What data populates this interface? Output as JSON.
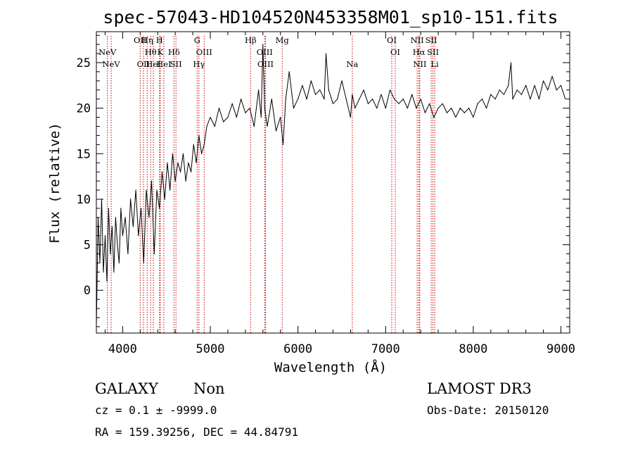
{
  "chart_data": {
    "type": "line",
    "title": "spec-57043-HD104520N453358M01_sp10-151.fits",
    "xlabel": "Wavelength (Å)",
    "ylabel": "Flux (relative)",
    "xlim": [
      3700,
      9100
    ],
    "ylim": [
      -4.7,
      28.4
    ],
    "x_ticks": [
      4000,
      5000,
      6000,
      7000,
      8000,
      9000
    ],
    "y_ticks": [
      0,
      5,
      10,
      15,
      20,
      25
    ],
    "line_color": "#000000",
    "marker_color": "#cc0000",
    "series": [
      {
        "x": [
          3700,
          3720,
          3740,
          3760,
          3780,
          3800,
          3820,
          3840,
          3860,
          3880,
          3900,
          3920,
          3940,
          3960,
          3980,
          4000,
          4030,
          4060,
          4090,
          4120,
          4150,
          4180,
          4210,
          4240,
          4270,
          4300,
          4330,
          4360,
          4390,
          4420,
          4450,
          4480,
          4510,
          4540,
          4570,
          4600,
          4630,
          4660,
          4690,
          4720,
          4750,
          4780,
          4810,
          4840,
          4870,
          4900,
          4930,
          4960,
          5000,
          5050,
          5100,
          5150,
          5200,
          5250,
          5300,
          5350,
          5400,
          5450,
          5500,
          5550,
          5580,
          5600,
          5620,
          5650,
          5700,
          5750,
          5800,
          5830,
          5860,
          5900,
          5950,
          6000,
          6050,
          6100,
          6150,
          6200,
          6250,
          6300,
          6320,
          6350,
          6400,
          6450,
          6500,
          6550,
          6600,
          6620,
          6650,
          6700,
          6750,
          6800,
          6850,
          6900,
          6950,
          7000,
          7050,
          7100,
          7150,
          7200,
          7250,
          7300,
          7350,
          7400,
          7450,
          7500,
          7550,
          7600,
          7650,
          7700,
          7750,
          7800,
          7850,
          7900,
          7950,
          8000,
          8050,
          8100,
          8150,
          8200,
          8250,
          8300,
          8350,
          8400,
          8430,
          8450,
          8500,
          8550,
          8600,
          8650,
          8700,
          8750,
          8800,
          8850,
          8900,
          8950,
          9000,
          9050
        ],
        "y": [
          -4,
          8,
          3,
          10,
          2,
          6,
          1,
          9,
          4,
          7,
          2,
          8,
          5,
          3,
          9,
          6,
          8,
          4,
          10,
          7,
          11,
          6,
          9,
          3,
          11,
          8,
          12,
          4,
          11,
          9,
          13,
          10,
          14,
          11,
          15,
          12,
          14,
          13,
          15,
          12,
          14,
          13,
          16,
          14,
          17,
          15,
          16,
          18,
          19,
          18,
          20,
          18.5,
          19,
          20.5,
          19,
          21,
          19.5,
          20,
          18,
          22,
          19,
          27,
          20,
          18,
          21,
          17.5,
          19,
          16,
          21,
          24,
          20,
          21,
          22.5,
          21,
          23,
          21.5,
          22,
          21,
          26,
          22,
          20.5,
          21,
          23,
          21,
          19,
          21.5,
          20,
          21,
          22,
          20.5,
          21,
          20,
          21.5,
          20,
          22,
          21,
          20.5,
          21,
          20,
          21.5,
          20,
          21,
          19.5,
          20.5,
          19,
          20,
          20.5,
          19.5,
          20,
          19,
          20,
          19.5,
          20,
          19,
          20.5,
          21,
          20,
          21.5,
          21,
          22,
          21.5,
          22.5,
          25,
          21,
          22,
          21.5,
          22.5,
          21,
          22.5,
          21,
          23,
          22,
          23.5,
          22,
          22.5,
          21
        ]
      }
    ],
    "emission_lines": [
      {
        "wavelength": 3826,
        "label": "NeV",
        "row": 1
      },
      {
        "wavelength": 3869,
        "label": "NeV",
        "row": 2
      },
      {
        "wavelength": 4200,
        "label": "OII",
        "row": 0
      },
      {
        "wavelength": 4237,
        "label": "OII",
        "row": 2
      },
      {
        "wavelength": 4280,
        "label": "Hη",
        "row": 0
      },
      {
        "wavelength": 4320,
        "label": "Hθ",
        "row": 1
      },
      {
        "wavelength": 4350,
        "label": "HeI",
        "row": 2
      },
      {
        "wavelength": 4420,
        "label": "H",
        "row": 0
      },
      {
        "wavelength": 4430,
        "label": "K",
        "row": 1
      },
      {
        "wavelength": 4470,
        "label": "HeI",
        "row": 2
      },
      {
        "wavelength": 4585,
        "label": "Hδ",
        "row": 1
      },
      {
        "wavelength": 4608,
        "label": "SII",
        "row": 2
      },
      {
        "wavelength": 4850,
        "label": "G",
        "row": 0
      },
      {
        "wavelength": 4870,
        "label": "Hγ",
        "row": 2
      },
      {
        "wavelength": 4930,
        "label": "OIII",
        "row": 1
      },
      {
        "wavelength": 5460,
        "label": "Hβ",
        "row": 0
      },
      {
        "wavelength": 5620,
        "label": "OIII",
        "row": 1
      },
      {
        "wavelength": 5630,
        "label": "OIII",
        "row": 2
      },
      {
        "wavelength": 5820,
        "label": "Mg",
        "row": 0
      },
      {
        "wavelength": 6620,
        "label": "Na",
        "row": 2
      },
      {
        "wavelength": 7070,
        "label": "OI",
        "row": 0
      },
      {
        "wavelength": 7110,
        "label": "OI",
        "row": 1
      },
      {
        "wavelength": 7360,
        "label": "NII",
        "row": 0
      },
      {
        "wavelength": 7380,
        "label": "Hα",
        "row": 1
      },
      {
        "wavelength": 7390,
        "label": "NII",
        "row": 2
      },
      {
        "wavelength": 7520,
        "label": "SII",
        "row": 0
      },
      {
        "wavelength": 7540,
        "label": "SII",
        "row": 1
      },
      {
        "wavelength": 7560,
        "label": "Li",
        "row": 2
      }
    ]
  },
  "info": {
    "object_class": "GALAXY",
    "subclass": "Non",
    "survey": "LAMOST DR3",
    "cz_line": "cz = 0.1 ± -9999.0",
    "obs_date": "Obs-Date: 20150120",
    "radec_line": "RA = 159.39256, DEC =  44.84791"
  }
}
